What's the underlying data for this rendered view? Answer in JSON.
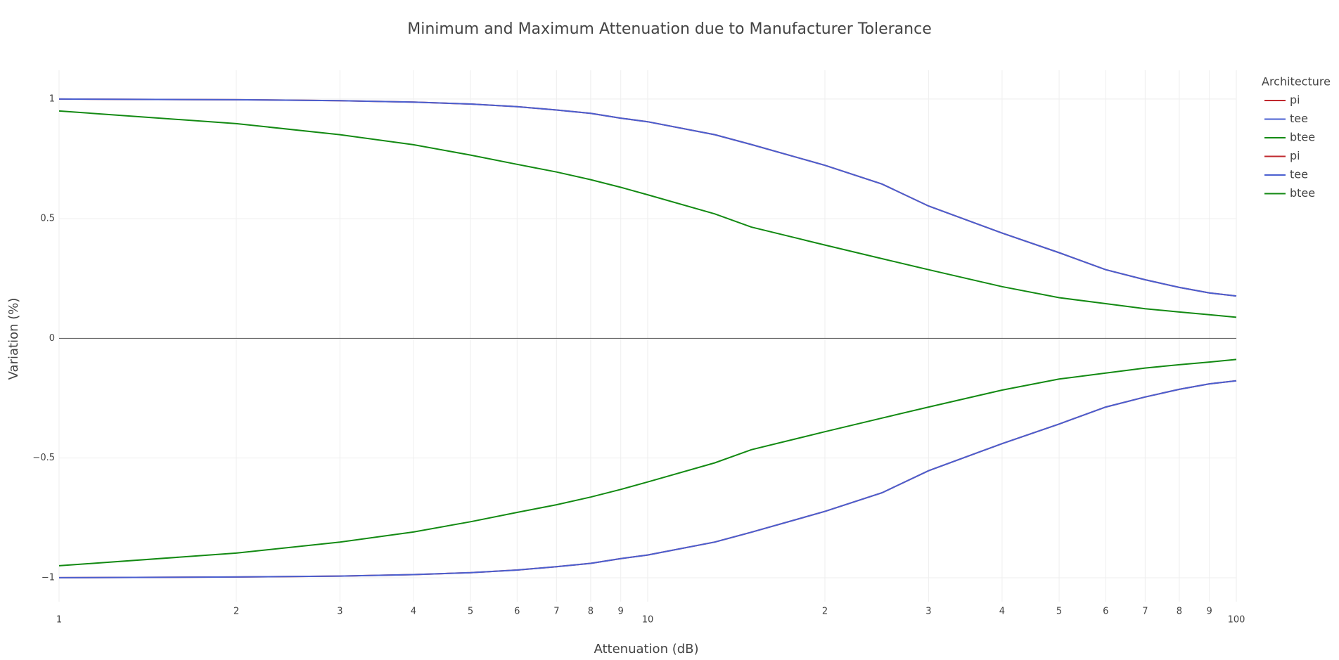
{
  "chart_data": {
    "type": "line",
    "title": "Minimum and Maximum Attenuation due to Manufacturer Tolerance",
    "x_label": "Attenuation (dB)",
    "y_label": "Variation (%)",
    "legend_title": "Architecture",
    "legend_position": "right",
    "log_x": true,
    "grid": true,
    "x": [
      1,
      2,
      3,
      4,
      5,
      6,
      7,
      8,
      9,
      10,
      13,
      15,
      20,
      25,
      30,
      40,
      50,
      60,
      70,
      80,
      90,
      100
    ],
    "series": [
      {
        "name": "pi",
        "color": "#c0282d",
        "values": [
          1.0,
          0.997,
          0.993,
          0.987,
          0.979,
          0.968,
          0.954,
          0.94,
          0.92,
          0.905,
          0.851,
          0.81,
          0.723,
          0.645,
          0.553,
          0.44,
          0.358,
          0.287,
          0.245,
          0.213,
          0.19,
          0.177
        ]
      },
      {
        "name": "tee",
        "color": "#4a5fd0",
        "values": [
          1.0,
          0.997,
          0.993,
          0.987,
          0.979,
          0.968,
          0.954,
          0.94,
          0.92,
          0.905,
          0.851,
          0.81,
          0.723,
          0.645,
          0.553,
          0.44,
          0.358,
          0.287,
          0.245,
          0.213,
          0.19,
          0.177
        ]
      },
      {
        "name": "btee",
        "color": "#138a13",
        "values": [
          0.95,
          0.897,
          0.851,
          0.809,
          0.766,
          0.727,
          0.695,
          0.663,
          0.631,
          0.6,
          0.52,
          0.465,
          0.39,
          0.333,
          0.287,
          0.216,
          0.17,
          0.145,
          0.124,
          0.11,
          0.099,
          0.088
        ]
      },
      {
        "name": "pi",
        "color": "#c0282d",
        "values": [
          -1.0,
          -0.997,
          -0.993,
          -0.987,
          -0.979,
          -0.968,
          -0.954,
          -0.94,
          -0.92,
          -0.905,
          -0.851,
          -0.81,
          -0.723,
          -0.645,
          -0.553,
          -0.44,
          -0.358,
          -0.287,
          -0.245,
          -0.213,
          -0.19,
          -0.177
        ]
      },
      {
        "name": "tee",
        "color": "#4a5fd0",
        "values": [
          -1.0,
          -0.997,
          -0.993,
          -0.987,
          -0.979,
          -0.968,
          -0.954,
          -0.94,
          -0.92,
          -0.905,
          -0.851,
          -0.81,
          -0.723,
          -0.645,
          -0.553,
          -0.44,
          -0.358,
          -0.287,
          -0.245,
          -0.213,
          -0.19,
          -0.177
        ]
      },
      {
        "name": "btee",
        "color": "#138a13",
        "values": [
          -0.95,
          -0.897,
          -0.851,
          -0.809,
          -0.766,
          -0.727,
          -0.695,
          -0.663,
          -0.631,
          -0.6,
          -0.52,
          -0.465,
          -0.39,
          -0.333,
          -0.287,
          -0.216,
          -0.17,
          -0.145,
          -0.124,
          -0.11,
          -0.099,
          -0.088
        ]
      }
    ],
    "xlim": [
      1,
      100
    ],
    "xticks": [
      1,
      2,
      3,
      4,
      5,
      6,
      7,
      8,
      9,
      10,
      {
        "value": 20,
        "label": "2"
      },
      {
        "value": 30,
        "label": "3"
      },
      {
        "value": 40,
        "label": "4"
      },
      {
        "value": 50,
        "label": "5"
      },
      {
        "value": 60,
        "label": "6"
      },
      {
        "value": 70,
        "label": "7"
      },
      {
        "value": 80,
        "label": "8"
      },
      {
        "value": 90,
        "label": "9"
      },
      100
    ],
    "ylim": [
      -1.1,
      1.12
    ],
    "yticks": [
      {
        "value": -1,
        "label": "−1"
      },
      {
        "value": -0.5,
        "label": "−0.5"
      },
      0,
      0.5,
      1
    ]
  }
}
